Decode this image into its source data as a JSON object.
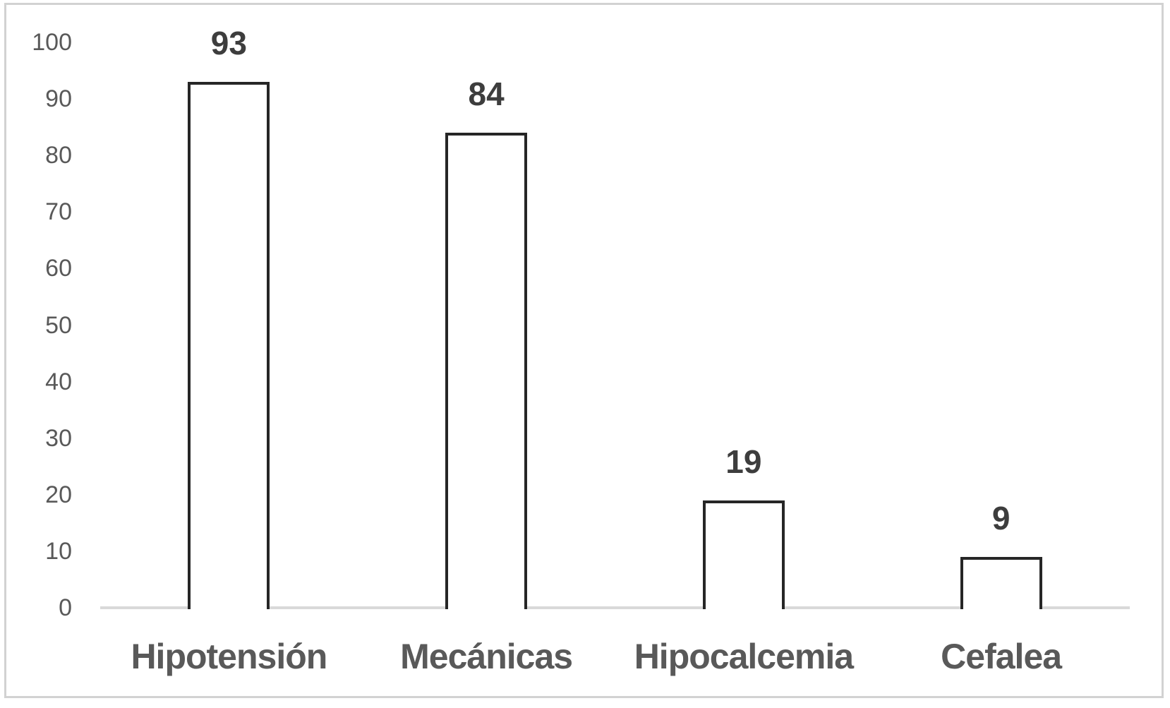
{
  "chart_data": {
    "type": "bar",
    "title": "",
    "xlabel": "",
    "ylabel": "",
    "categories": [
      "Hipotensión",
      "Mecánicas",
      "Hipocalcemia",
      "Cefalea"
    ],
    "values": [
      93,
      84,
      19,
      9
    ],
    "data_labels": [
      "93",
      "84",
      "19",
      "9"
    ],
    "ytick_labels": [
      "0",
      "10",
      "20",
      "30",
      "40",
      "50",
      "60",
      "70",
      "80",
      "90",
      "100"
    ],
    "yticks": [
      0,
      10,
      20,
      30,
      40,
      50,
      60,
      70,
      80,
      90,
      100
    ],
    "ylim": [
      0,
      100
    ],
    "grid": "off",
    "legend": "none",
    "colors": {
      "bar_fill": "#ffffff",
      "bar_border": "#262626",
      "axis_line": "#d9d9d9",
      "tick_label": "#595959",
      "data_label": "#3d3d3d",
      "category_label": "#595959",
      "frame_border": "#d2d2d2",
      "background": "#ffffff"
    }
  }
}
